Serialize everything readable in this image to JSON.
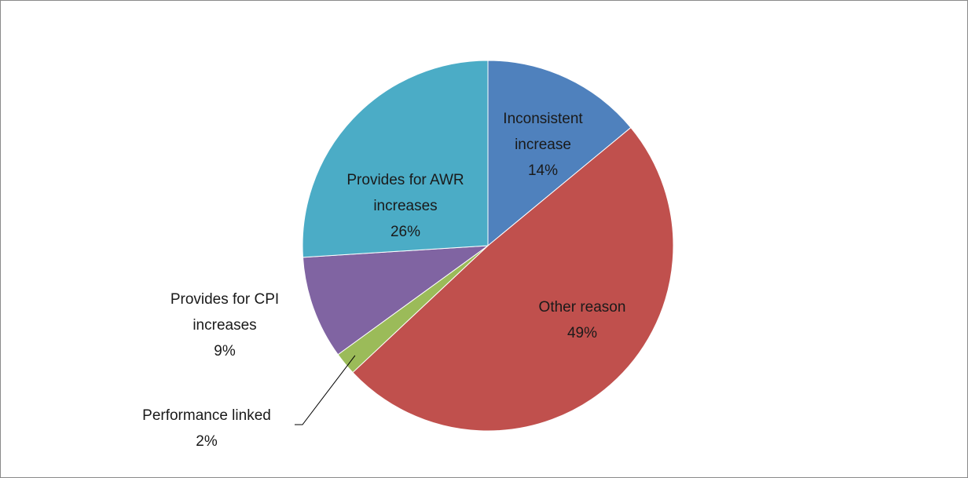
{
  "chart_data": {
    "type": "pie",
    "categories": [
      "Inconsistent increase",
      "Other reason",
      "Performance linked",
      "Provides for CPI increases",
      "Provides for AWR increases"
    ],
    "values": [
      14,
      49,
      2,
      9,
      26
    ],
    "value_labels": [
      "14%",
      "49%",
      "2%",
      "9%",
      "26%"
    ],
    "colors": [
      "#4f81bd",
      "#c0504d",
      "#9bbb59",
      "#8064a2",
      "#4bacc6"
    ]
  }
}
